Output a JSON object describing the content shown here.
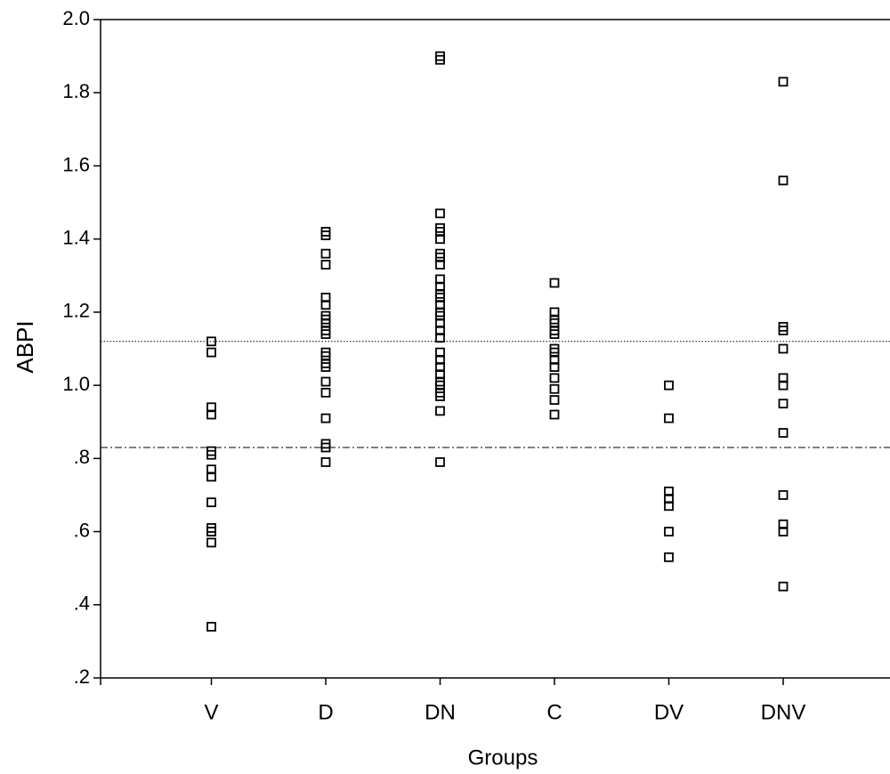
{
  "chart_data": {
    "type": "strip",
    "x_label": "Groups",
    "y_label": "ABPI",
    "categories": [
      "V",
      "D",
      "DN",
      "C",
      "DV",
      "DNV"
    ],
    "values": [
      [
        1.12,
        1.09,
        0.94,
        0.92,
        0.82,
        0.81,
        0.77,
        0.75,
        0.68,
        0.61,
        0.6,
        0.57,
        0.34
      ],
      [
        1.42,
        1.41,
        1.36,
        1.33,
        1.24,
        1.22,
        1.19,
        1.18,
        1.17,
        1.15,
        1.14,
        1.09,
        1.08,
        1.06,
        1.05,
        1.01,
        0.98,
        0.91,
        0.84,
        0.83,
        0.79
      ],
      [
        1.9,
        1.89,
        1.47,
        1.43,
        1.42,
        1.4,
        1.36,
        1.35,
        1.33,
        1.29,
        1.27,
        1.25,
        1.24,
        1.22,
        1.2,
        1.19,
        1.17,
        1.15,
        1.13,
        1.09,
        1.07,
        1.05,
        1.03,
        1.01,
        1.0,
        0.98,
        0.97,
        0.93,
        0.79
      ],
      [
        1.28,
        1.2,
        1.18,
        1.17,
        1.15,
        1.14,
        1.1,
        1.09,
        1.07,
        1.05,
        1.02,
        0.99,
        0.96,
        0.92
      ],
      [
        1.0,
        0.91,
        0.71,
        0.69,
        0.67,
        0.6,
        0.53
      ],
      [
        1.83,
        1.56,
        1.16,
        1.15,
        1.1,
        1.02,
        1.0,
        0.95,
        0.87,
        0.7,
        0.62,
        0.6,
        0.45
      ]
    ],
    "color": "#000000",
    "marker": "open-square",
    "ylim": [
      0.2,
      2.0
    ],
    "yticks": [
      {
        "value": 2.0,
        "label": "2.0"
      },
      1.8,
      1.6,
      1.4,
      1.2,
      {
        "value": 1.0,
        "label": "1.0"
      },
      {
        "value": 0.8,
        "label": ".8"
      },
      {
        "value": 0.6,
        "label": ".6"
      },
      {
        "value": 0.4,
        "label": ".4"
      },
      {
        "value": 0.2,
        "label": ".2"
      }
    ],
    "reference_lines": [
      {
        "value": 1.12,
        "style": "dotted"
      },
      {
        "value": 0.83,
        "style": "dash-dot"
      }
    ]
  }
}
